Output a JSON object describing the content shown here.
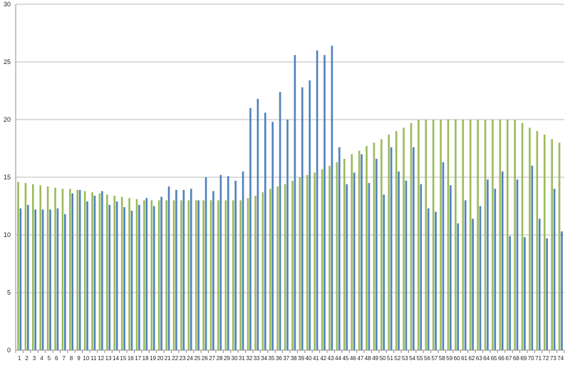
{
  "chart_data": {
    "type": "bar",
    "title": "",
    "xlabel": "",
    "ylabel": "",
    "ylim": [
      0,
      30
    ],
    "yticks": [
      0,
      5,
      10,
      15,
      20,
      25,
      30
    ],
    "grid": true,
    "legend": "none",
    "categories": [
      "1",
      "2",
      "3",
      "4",
      "5",
      "6",
      "7",
      "8",
      "9",
      "10",
      "11",
      "12",
      "13",
      "14",
      "15",
      "16",
      "17",
      "18",
      "19",
      "20",
      "21",
      "22",
      "23",
      "24",
      "25",
      "26",
      "27",
      "28",
      "29",
      "30",
      "31",
      "32",
      "33",
      "34",
      "35",
      "36",
      "37",
      "38",
      "39",
      "40",
      "41",
      "42",
      "43",
      "44",
      "45",
      "46",
      "47",
      "48",
      "49",
      "50",
      "51",
      "52",
      "53",
      "54",
      "55",
      "56",
      "57",
      "58",
      "59",
      "60",
      "61",
      "62",
      "63",
      "64",
      "65",
      "66",
      "67",
      "68",
      "69",
      "70",
      "71",
      "72",
      "73",
      "74"
    ],
    "series": [
      {
        "color": "#9bbb59",
        "values": [
          14.6,
          14.5,
          14.4,
          14.3,
          14.2,
          14.1,
          14.0,
          14.0,
          13.9,
          13.8,
          13.7,
          13.6,
          13.5,
          13.4,
          13.3,
          13.2,
          13.1,
          13.0,
          13.0,
          13.0,
          13.0,
          13.0,
          13.0,
          13.0,
          13.0,
          13.0,
          13.0,
          13.0,
          13.0,
          13.0,
          13.0,
          13.2,
          13.4,
          13.7,
          14.0,
          14.2,
          14.4,
          14.7,
          15.0,
          15.2,
          15.4,
          15.7,
          16.0,
          16.3,
          16.6,
          17.0,
          17.3,
          17.7,
          18.0,
          18.3,
          18.7,
          19.0,
          19.3,
          19.7,
          20.0,
          20.0,
          20.0,
          20.0,
          20.0,
          20.0,
          20.0,
          20.0,
          20.0,
          20.0,
          20.0,
          20.0,
          20.0,
          20.0,
          19.7,
          19.3,
          19.0,
          18.7,
          18.3,
          18.0
        ]
      },
      {
        "color": "#4f81bd",
        "values": [
          12.3,
          12.6,
          12.2,
          12.2,
          12.2,
          12.3,
          11.8,
          13.6,
          13.9,
          12.9,
          13.4,
          13.8,
          12.6,
          12.9,
          12.4,
          12.1,
          12.6,
          13.2,
          12.5,
          13.3,
          14.2,
          13.9,
          13.9,
          14.0,
          13.0,
          15.0,
          13.8,
          15.2,
          15.1,
          14.7,
          15.5,
          21.0,
          21.8,
          20.6,
          19.8,
          22.4,
          20.0,
          25.6,
          22.8,
          23.4,
          26.0,
          25.6,
          26.4,
          17.6,
          14.4,
          15.4,
          17.0,
          14.5,
          16.6,
          13.5,
          17.6,
          15.5,
          14.7,
          17.6,
          14.4,
          12.3,
          12.0,
          16.3,
          14.3,
          11.0,
          13.0,
          11.4,
          12.5,
          14.8,
          14.0,
          15.5,
          9.9,
          14.8,
          9.8,
          16.0,
          11.4,
          9.7,
          14.0,
          10.3
        ]
      }
    ]
  }
}
